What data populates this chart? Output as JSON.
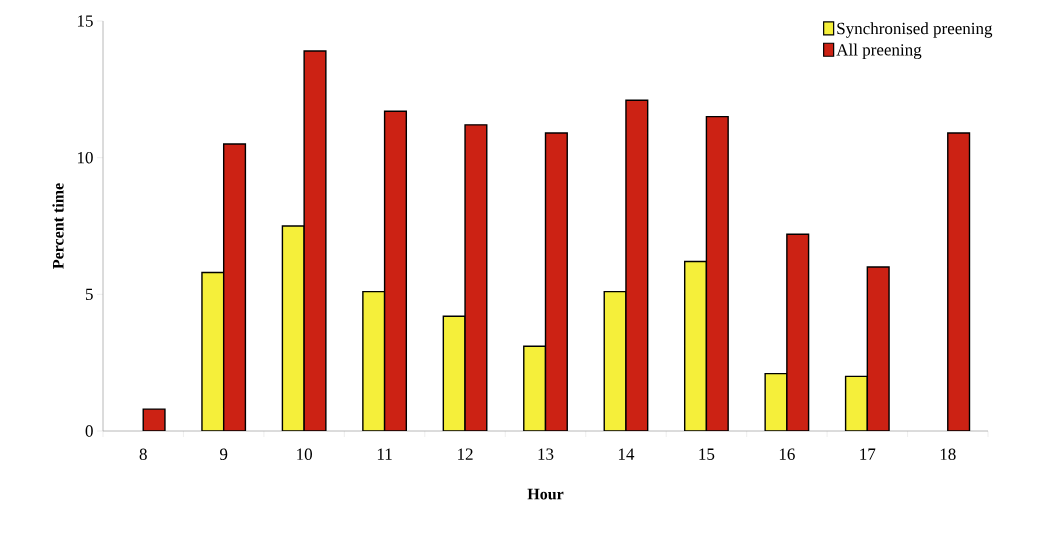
{
  "chart_data": {
    "type": "bar",
    "xlabel": "Hour",
    "ylabel": "Percent time",
    "categories": [
      "8",
      "9",
      "10",
      "11",
      "12",
      "13",
      "14",
      "15",
      "16",
      "17",
      "18"
    ],
    "series": [
      {
        "name": "Synchronised preening",
        "color": "#f5ef3a",
        "values": [
          null,
          5.8,
          7.5,
          5.1,
          4.2,
          3.1,
          5.1,
          6.2,
          2.1,
          2.0,
          null
        ]
      },
      {
        "name": "All preening",
        "color": "#cc2214",
        "values": [
          0.8,
          10.5,
          13.9,
          11.7,
          11.2,
          10.9,
          12.1,
          11.5,
          7.2,
          6.0,
          10.9
        ]
      }
    ],
    "ylim": [
      0,
      15
    ],
    "yticks": [
      0,
      5,
      10,
      15
    ],
    "legend": "top right"
  }
}
